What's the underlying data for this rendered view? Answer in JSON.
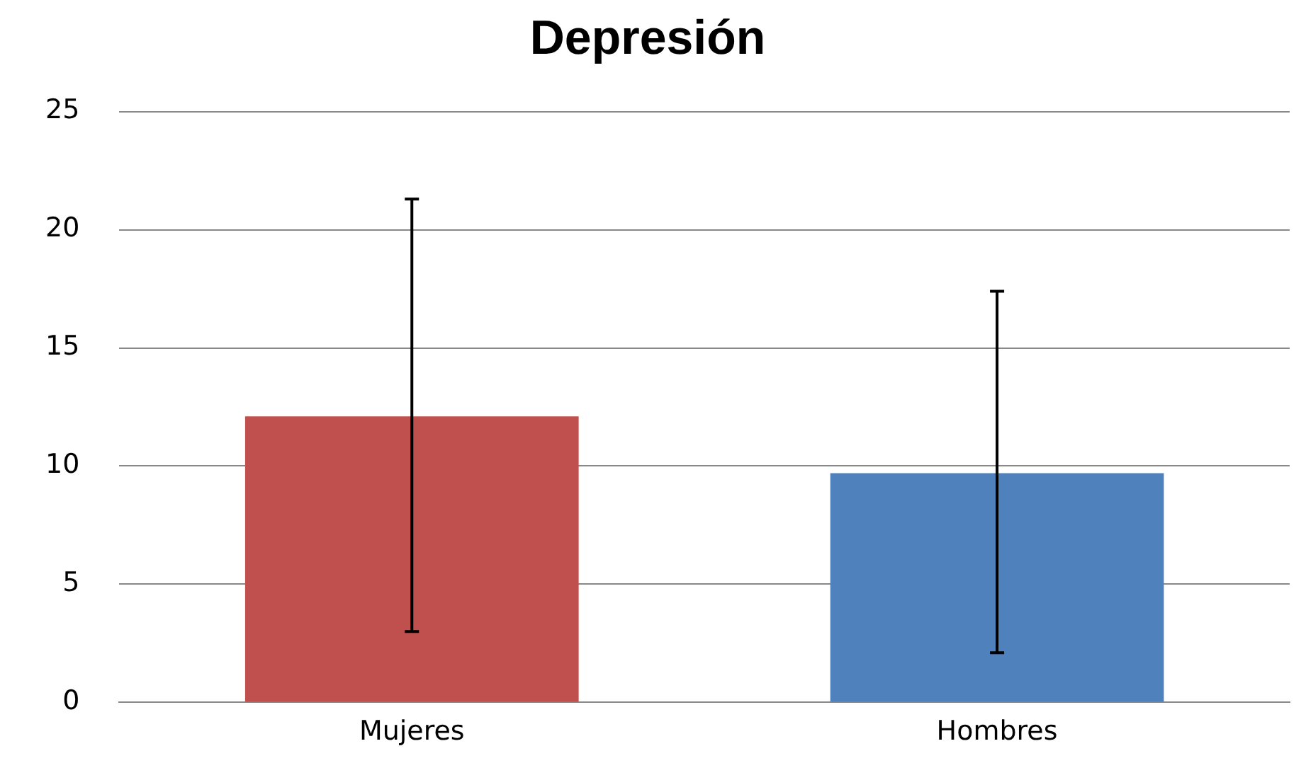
{
  "chart_data": {
    "type": "bar",
    "title": "Depresión",
    "categories": [
      "Mujeres",
      "Hombres"
    ],
    "values": [
      12.1,
      9.7
    ],
    "colors": [
      "#c0504d",
      "#4f81bd"
    ],
    "errors": [
      [
        3.0,
        21.3
      ],
      [
        2.1,
        17.4
      ]
    ],
    "ylim": [
      0,
      25
    ],
    "yticks": [
      0,
      5,
      10,
      15,
      20,
      25
    ],
    "grid": "y",
    "legend": false
  }
}
